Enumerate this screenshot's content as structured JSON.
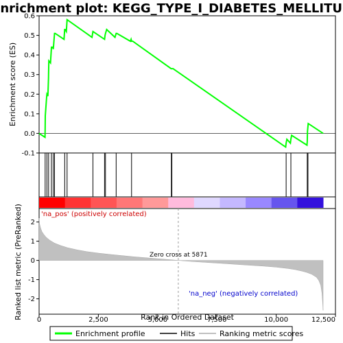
{
  "title": "Enrichment plot: KEGG_TYPE_I_DIABETES_MELLITUS",
  "chart_data": [
    {
      "type": "line",
      "panel": "enrichment",
      "ylabel": "Enrichment score (ES)",
      "ylim": [
        -0.1,
        0.6
      ],
      "yticks": [
        -0.1,
        0.0,
        0.1,
        0.2,
        0.3,
        0.4,
        0.5,
        0.6
      ],
      "ytick_labels": [
        "-0.1",
        "0.0",
        "0.1",
        "0.2",
        "0.3",
        "0.4",
        "0.5",
        "0.6"
      ],
      "xlim": [
        0,
        12500
      ],
      "grid": false,
      "series": [
        {
          "name": "Enrichment profile",
          "color": "#00ff00",
          "x": [
            0,
            250,
            255,
            260,
            320,
            330,
            370,
            395,
            400,
            410,
            480,
            520,
            570,
            600,
            650,
            680,
            1050,
            1080,
            1100,
            1150,
            1180,
            2230,
            2270,
            2760,
            2780,
            2800,
            2850,
            3200,
            3250,
            3280,
            3850,
            3880,
            3900,
            3950,
            5570,
            5580,
            5600,
            5650,
            10400,
            10420,
            10450,
            10600,
            10620,
            10650,
            11300,
            11310,
            11320,
            11350,
            11980
          ],
          "y": [
            0.0,
            -0.02,
            0.02,
            0.09,
            0.19,
            0.2,
            0.19,
            0.28,
            0.3,
            0.37,
            0.36,
            0.44,
            0.44,
            0.43,
            0.51,
            0.51,
            0.48,
            0.53,
            0.53,
            0.52,
            0.58,
            0.49,
            0.52,
            0.48,
            0.5,
            0.51,
            0.53,
            0.49,
            0.51,
            0.51,
            0.47,
            0.48,
            0.47,
            0.47,
            0.33,
            0.33,
            0.33,
            0.33,
            -0.07,
            -0.05,
            -0.03,
            -0.05,
            -0.03,
            -0.01,
            -0.06,
            -0.04,
            0.01,
            0.05,
            0.0
          ]
        }
      ]
    },
    {
      "type": "scatter",
      "panel": "hits",
      "series": [
        {
          "name": "Hits",
          "color": "#000000",
          "x": [
            255,
            330,
            400,
            520,
            600,
            650,
            1080,
            1180,
            2270,
            2760,
            2800,
            3250,
            3900,
            5580,
            5600,
            10420,
            10620,
            11310,
            11340
          ]
        }
      ]
    },
    {
      "type": "heatmap",
      "panel": "rank_colorbar",
      "colors": [
        "#ff0000",
        "#ff3333",
        "#ff5555",
        "#ff7777",
        "#ff9999",
        "#ffbbdd",
        "#e0d8ff",
        "#c4b8ff",
        "#9988ff",
        "#6655ee",
        "#3311dd"
      ]
    },
    {
      "type": "area",
      "panel": "ranked_metric",
      "xlabel": "Rank in Ordered Dataset",
      "ylabel": "Ranked list metric (PreRanked)",
      "ylim": [
        -2.8,
        2.7
      ],
      "yticks": [
        -2,
        -1,
        0,
        1,
        2
      ],
      "ytick_labels": [
        "-2",
        "-1",
        "0",
        "1",
        "2"
      ],
      "xlim": [
        0,
        12500
      ],
      "xticks": [
        0,
        2500,
        5000,
        7500,
        10000,
        12500
      ],
      "xtick_labels": [
        "0",
        "2,500",
        "5,000",
        "7,500",
        "10,000",
        "12,500"
      ],
      "zero_cross": 5871,
      "series": [
        {
          "name": "Ranking metric scores",
          "color": "#c0c0c0",
          "x": [
            0,
            20,
            60,
            120,
            200,
            300,
            450,
            650,
            900,
            1200,
            1600,
            2000,
            2500,
            3000,
            3500,
            4000,
            4500,
            5000,
            5500,
            5871,
            6500,
            7000,
            7500,
            8000,
            8500,
            9000,
            9500,
            10000,
            10500,
            10800,
            11100,
            11300,
            11500,
            11700,
            11800,
            11880,
            11930,
            11960,
            11980
          ],
          "y": [
            2.2,
            1.9,
            1.7,
            1.5,
            1.35,
            1.2,
            1.05,
            0.9,
            0.78,
            0.66,
            0.55,
            0.46,
            0.38,
            0.31,
            0.25,
            0.19,
            0.14,
            0.09,
            0.04,
            0.0,
            -0.06,
            -0.1,
            -0.14,
            -0.18,
            -0.22,
            -0.26,
            -0.3,
            -0.35,
            -0.42,
            -0.48,
            -0.56,
            -0.63,
            -0.72,
            -0.88,
            -1.05,
            -1.3,
            -1.7,
            -2.2,
            -2.6
          ]
        }
      ]
    }
  ],
  "annotations": {
    "pos_label": "'na_pos' (positively correlated)",
    "neg_label": "'na_neg' (negatively correlated)",
    "zero_cross_label": "Zero cross at 5871"
  },
  "legend": {
    "items": [
      {
        "label": "Enrichment profile",
        "color": "#00ff00"
      },
      {
        "label": "Hits",
        "color": "#000000"
      },
      {
        "label": "Ranking metric scores",
        "color": "#c0c0c0"
      }
    ]
  }
}
